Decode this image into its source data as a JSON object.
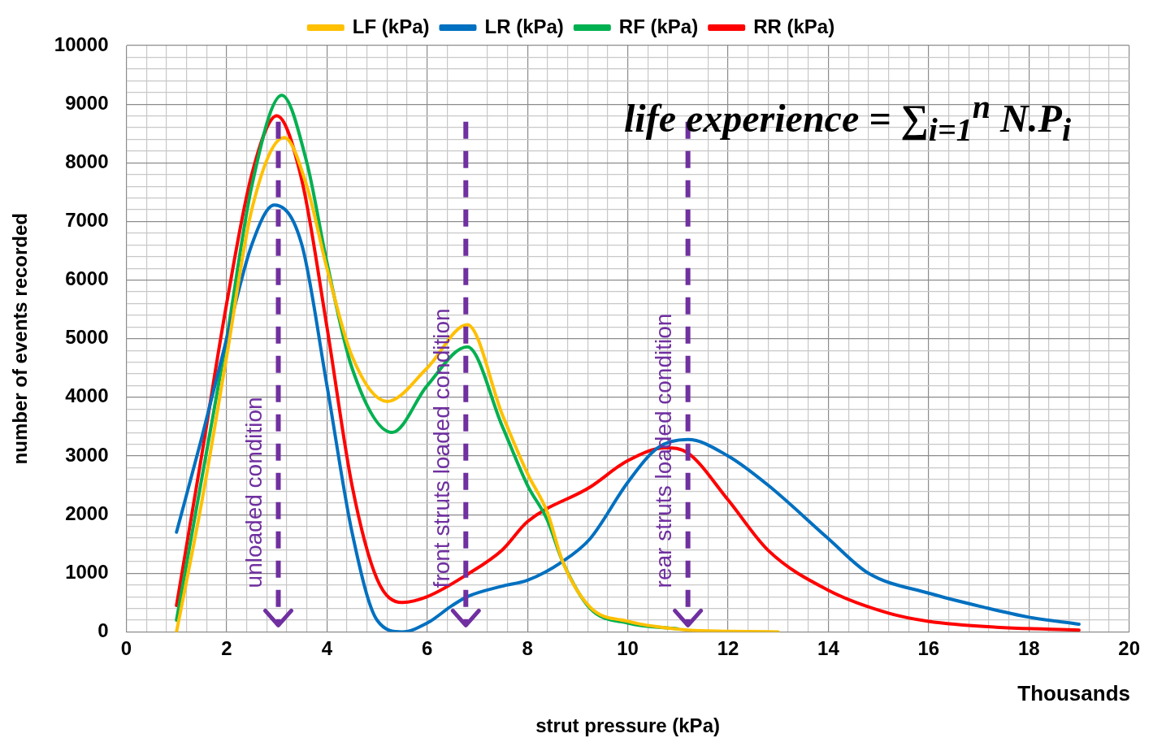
{
  "chart_data": {
    "type": "line",
    "xlabel": "strut pressure (kPa)",
    "ylabel": "number of events recorded",
    "xlim": [
      0,
      20
    ],
    "ylim": [
      0,
      10000
    ],
    "xticks": [
      0,
      {
        "value": 0.4,
        "label": null
      },
      {
        "value": 0.8,
        "label": null
      },
      {
        "value": 1.2,
        "label": null
      },
      {
        "value": 1.6,
        "label": null
      },
      2,
      {
        "value": 2.4,
        "label": null
      },
      {
        "value": 2.8,
        "label": null
      },
      {
        "value": 3.2,
        "label": null
      },
      {
        "value": 3.6,
        "label": null
      },
      4,
      {
        "value": 4.4,
        "label": null
      },
      {
        "value": 4.8,
        "label": null
      },
      {
        "value": 5.2,
        "label": null
      },
      {
        "value": 5.6,
        "label": null
      },
      6,
      {
        "value": 6.4,
        "label": null
      },
      {
        "value": 7.2,
        "label": null
      },
      {
        "value": 7.6,
        "label": null
      },
      8,
      {
        "value": 8.4,
        "label": null
      },
      {
        "value": 8.8,
        "label": null
      },
      {
        "value": 9.2,
        "label": null
      },
      {
        "value": 9.6,
        "label": null
      },
      10,
      {
        "value": 10.4,
        "label": null
      },
      {
        "value": 10.8,
        "label": null
      },
      {
        "value": 11.6,
        "label": null
      },
      12,
      {
        "value": 12.4,
        "label": null
      },
      {
        "value": 12.8,
        "label": null
      },
      {
        "value": 13.2,
        "label": null
      },
      {
        "value": 13.6,
        "label": null
      },
      14,
      {
        "value": 14.4,
        "label": null
      },
      {
        "value": 14.8,
        "label": null
      },
      {
        "value": 15.2,
        "label": null
      },
      {
        "value": 15.6,
        "label": null
      },
      16,
      {
        "value": 16.4,
        "label": null
      },
      {
        "value": 16.8,
        "label": null
      },
      {
        "value": 17.2,
        "label": null
      },
      {
        "value": 17.6,
        "label": null
      },
      18,
      {
        "value": 18.4,
        "label": null
      },
      {
        "value": 18.8,
        "label": null
      },
      {
        "value": 19.2,
        "label": null
      },
      {
        "value": 19.6,
        "label": null
      },
      20
    ],
    "yticks": [
      0,
      {
        "value": 200,
        "label": null
      },
      {
        "value": 400,
        "label": null
      },
      {
        "value": 600,
        "label": null
      },
      {
        "value": 800,
        "label": null
      },
      1000,
      {
        "value": 1200,
        "label": null
      },
      {
        "value": 1400,
        "label": null
      },
      {
        "value": 1600,
        "label": null
      },
      {
        "value": 1800,
        "label": null
      },
      2000,
      {
        "value": 2200,
        "label": null
      },
      {
        "value": 2400,
        "label": null
      },
      {
        "value": 2600,
        "label": null
      },
      {
        "value": 2800,
        "label": null
      },
      3000,
      {
        "value": 3200,
        "label": null
      },
      {
        "value": 3400,
        "label": null
      },
      {
        "value": 3600,
        "label": null
      },
      {
        "value": 3800,
        "label": null
      },
      4000,
      {
        "value": 4200,
        "label": null
      },
      {
        "value": 4400,
        "label": null
      },
      {
        "value": 4600,
        "label": null
      },
      {
        "value": 4800,
        "label": null
      },
      5000,
      {
        "value": 5200,
        "label": null
      },
      {
        "value": 5400,
        "label": null
      },
      {
        "value": 5600,
        "label": null
      },
      {
        "value": 5800,
        "label": null
      },
      6000,
      {
        "value": 6200,
        "label": null
      },
      {
        "value": 6400,
        "label": null
      },
      {
        "value": 6600,
        "label": null
      },
      {
        "value": 6800,
        "label": null
      },
      7000,
      {
        "value": 7200,
        "label": null
      },
      {
        "value": 7400,
        "label": null
      },
      {
        "value": 7600,
        "label": null
      },
      {
        "value": 7800,
        "label": null
      },
      8000,
      {
        "value": 8200,
        "label": null
      },
      {
        "value": 8400,
        "label": null
      },
      {
        "value": 8600,
        "label": null
      },
      {
        "value": 8800,
        "label": null
      },
      9000,
      {
        "value": 9200,
        "label": null
      },
      {
        "value": 9400,
        "label": null
      },
      {
        "value": 9600,
        "label": null
      },
      {
        "value": 9800,
        "label": null
      },
      10000
    ],
    "series": [
      {
        "name": "LF (kPa)",
        "color": "#ffc000",
        "x": [
          1,
          1.5,
          2,
          2.5,
          3.15,
          3.6,
          4,
          4.5,
          5.2,
          6,
          6.8,
          7.5,
          8,
          8.4,
          8.7,
          9.25,
          10,
          11.2,
          12,
          13
        ],
        "values": [
          0,
          2200,
          4700,
          7200,
          8430,
          7600,
          6200,
          4700,
          3930,
          4500,
          5240,
          3700,
          2700,
          2030,
          1200,
          420,
          180,
          30,
          10,
          0
        ]
      },
      {
        "name": "LR (kPa)",
        "color": "#0070c0",
        "x": [
          1,
          1.5,
          2,
          2.5,
          2.95,
          3.5,
          4,
          4.5,
          5,
          5.5,
          6,
          6.5,
          6.8,
          7.5,
          8,
          8.7,
          9.25,
          10,
          10.6,
          11.2,
          12,
          12.8,
          14,
          14.8,
          16,
          17.1,
          18,
          19
        ],
        "values": [
          1700,
          3300,
          5000,
          6600,
          7280,
          6600,
          4200,
          1700,
          200,
          0,
          150,
          450,
          600,
          780,
          880,
          1200,
          1590,
          2550,
          3140,
          3280,
          3000,
          2500,
          1590,
          1000,
          660,
          420,
          250,
          130
        ]
      },
      {
        "name": "RF (kPa)",
        "color": "#00b050",
        "x": [
          1,
          1.5,
          2,
          2.5,
          3.1,
          3.6,
          4,
          4.5,
          5.3,
          6,
          6.8,
          7.5,
          8,
          8.4,
          8.7,
          9.25,
          10,
          11
        ],
        "values": [
          200,
          2600,
          5000,
          7600,
          9150,
          8000,
          6300,
          4500,
          3400,
          4200,
          4860,
          3500,
          2500,
          1900,
          1200,
          400,
          150,
          50
        ]
      },
      {
        "name": "RR (kPa)",
        "color": "#ff0000",
        "x": [
          1,
          1.5,
          2,
          2.5,
          3,
          3.5,
          4,
          4.5,
          5,
          5.5,
          6,
          6.8,
          7.5,
          8,
          9.25,
          10,
          10.75,
          11.2,
          12,
          12.8,
          14,
          15.2,
          16,
          17.35,
          19
        ],
        "values": [
          450,
          3000,
          5600,
          7800,
          8800,
          7700,
          5200,
          2500,
          900,
          500,
          600,
          980,
          1400,
          1880,
          2470,
          2920,
          3140,
          3050,
          2250,
          1390,
          710,
          320,
          180,
          80,
          30
        ]
      }
    ],
    "ref_lines": [
      {
        "axis": "x",
        "value": 3.03,
        "label": "unloaded condition",
        "color": "#7030a0",
        "line_style": "dashed"
      },
      {
        "axis": "x",
        "value": 6.77,
        "label": "front struts loaded condition",
        "color": "#7030a0",
        "line_style": "dashed"
      },
      {
        "axis": "x",
        "value": 11.2,
        "label": "rear struts loaded condition",
        "color": "#7030a0",
        "line_style": "dashed"
      }
    ],
    "annotations": [
      "Thousands",
      "life experience = ∑$_{i=1}$$^{n}$ N.P$_{i}$"
    ],
    "grid": true,
    "legend": "top",
    "marker": "none",
    "line_style": "solid"
  }
}
